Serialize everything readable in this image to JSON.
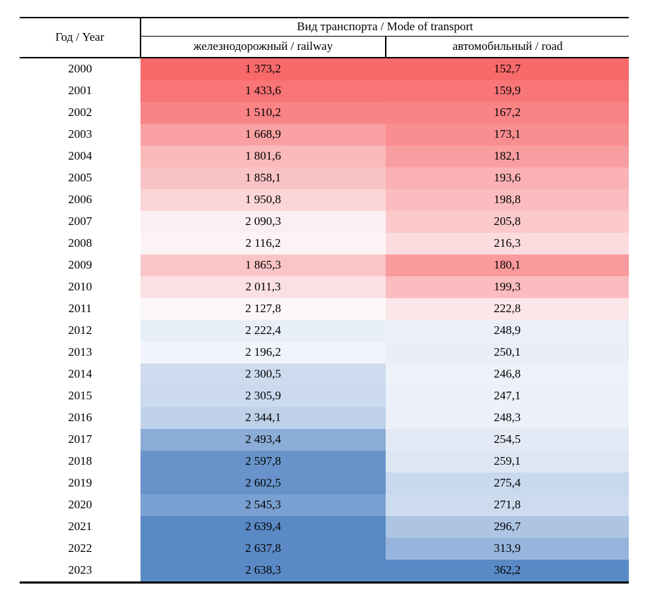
{
  "table": {
    "header": {
      "year_label": "Год / Year",
      "group_label": "Вид транспорта / Mode of transport",
      "railway_label": "железнодорожный / railway",
      "road_label": "автомобильный / road"
    },
    "colors": {
      "low": "#F8696B",
      "mid": "#FCFCFF",
      "high": "#5A8AC6"
    },
    "rows": [
      {
        "year": "2000",
        "railway": "1 373,2",
        "road": "152,7"
      },
      {
        "year": "2001",
        "railway": "1 433,6",
        "road": "159,9"
      },
      {
        "year": "2002",
        "railway": "1 510,2",
        "road": "167,2"
      },
      {
        "year": "2003",
        "railway": "1 668,9",
        "road": "173,1"
      },
      {
        "year": "2004",
        "railway": "1 801,6",
        "road": "182,1"
      },
      {
        "year": "2005",
        "railway": "1 858,1",
        "road": "193,6"
      },
      {
        "year": "2006",
        "railway": "1 950,8",
        "road": "198,8"
      },
      {
        "year": "2007",
        "railway": "2 090,3",
        "road": "205,8"
      },
      {
        "year": "2008",
        "railway": "2 116,2",
        "road": "216,3"
      },
      {
        "year": "2009",
        "railway": "1 865,3",
        "road": "180,1"
      },
      {
        "year": "2010",
        "railway": "2 011,3",
        "road": "199,3"
      },
      {
        "year": "2011",
        "railway": "2 127,8",
        "road": "222,8"
      },
      {
        "year": "2012",
        "railway": "2 222,4",
        "road": "248,9"
      },
      {
        "year": "2013",
        "railway": "2 196,2",
        "road": "250,1"
      },
      {
        "year": "2014",
        "railway": "2 300,5",
        "road": "246,8"
      },
      {
        "year": "2015",
        "railway": "2 305,9",
        "road": "247,1"
      },
      {
        "year": "2016",
        "railway": "2 344,1",
        "road": "248,3"
      },
      {
        "year": "2017",
        "railway": "2 493,4",
        "road": "254,5"
      },
      {
        "year": "2018",
        "railway": "2 597,8",
        "road": "259,1"
      },
      {
        "year": "2019",
        "railway": "2 602,5",
        "road": "275,4"
      },
      {
        "year": "2020",
        "railway": "2 545,3",
        "road": "271,8"
      },
      {
        "year": "2021",
        "railway": "2 639,4",
        "road": "296,7"
      },
      {
        "year": "2022",
        "railway": "2 637,8",
        "road": "313,9"
      },
      {
        "year": "2023",
        "railway": "2 638,3",
        "road": "362,2"
      }
    ]
  },
  "chart_data": {
    "type": "table",
    "title": "Вид транспорта / Mode of transport",
    "columns": [
      "Год / Year",
      "железнодорожный / railway",
      "автомобильный / road"
    ],
    "categories": [
      2000,
      2001,
      2002,
      2003,
      2004,
      2005,
      2006,
      2007,
      2008,
      2009,
      2010,
      2011,
      2012,
      2013,
      2014,
      2015,
      2016,
      2017,
      2018,
      2019,
      2020,
      2021,
      2022,
      2023
    ],
    "series": [
      {
        "name": "железнодорожный / railway",
        "values": [
          1373.2,
          1433.6,
          1510.2,
          1668.9,
          1801.6,
          1858.1,
          1950.8,
          2090.3,
          2116.2,
          1865.3,
          2011.3,
          2127.8,
          2222.4,
          2196.2,
          2300.5,
          2305.9,
          2344.1,
          2493.4,
          2597.8,
          2602.5,
          2545.3,
          2639.4,
          2637.8,
          2638.3
        ]
      },
      {
        "name": "автомобильный / road",
        "values": [
          152.7,
          159.9,
          167.2,
          173.1,
          182.1,
          193.6,
          198.8,
          205.8,
          216.3,
          180.1,
          199.3,
          222.8,
          248.9,
          250.1,
          246.8,
          247.1,
          248.3,
          254.5,
          259.1,
          275.4,
          271.8,
          296.7,
          313.9,
          362.2
        ]
      }
    ],
    "layout_hints": {
      "heatmap_per_column": true,
      "color_scale": {
        "low": "#F8696B",
        "mid": "#FCFCFF",
        "high": "#5A8AC6",
        "midpoint": "column median"
      },
      "decimal_separator": ",",
      "thousands_separator": " "
    }
  }
}
